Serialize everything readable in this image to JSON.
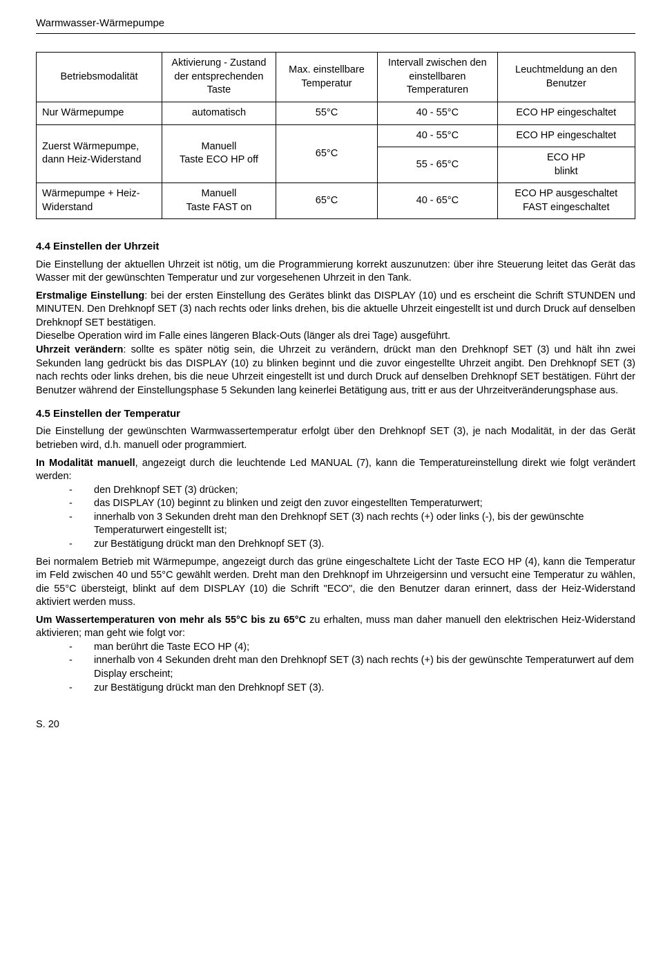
{
  "header": "Warmwasser-Wärmepumpe",
  "table": {
    "columns": [
      "Betriebsmodalität",
      "Aktivierung - Zustand der entsprechenden Taste",
      "Max. einstellbare Temperatur",
      "Intervall zwischen den einstellbaren Temperaturen",
      "Leuchtmeldung an den Benutzer"
    ],
    "r1": {
      "c1": "Nur Wärmepumpe",
      "c2": "automatisch",
      "c3": "55°C",
      "c4": "40 - 55°C",
      "c5": "ECO HP eingeschaltet"
    },
    "r2": {
      "c1": "Zuerst Wärmepumpe, dann Heiz-Widerstand",
      "c2": "Manuell\nTaste ECO HP off",
      "c3": "65°C",
      "c4a": "40 - 55°C",
      "c5a": "ECO HP eingeschaltet",
      "c4b": "55 - 65°C",
      "c5b": "ECO HP\nblinkt"
    },
    "r3": {
      "c1": "Wärmepumpe + Heiz-Widerstand",
      "c2": "Manuell\nTaste FAST on",
      "c3": "65°C",
      "c4": "40 - 65°C",
      "c5": "ECO HP ausgeschaltet\nFAST eingeschaltet"
    }
  },
  "sec44": {
    "title": "4.4 Einstellen der Uhrzeit",
    "p1": "Die Einstellung der aktuellen Uhrzeit ist nötig, um die Programmierung korrekt auszunutzen: über ihre Steuerung leitet das Gerät das Wasser mit der gewünschten Temperatur und zur vorgesehenen Uhrzeit in den Tank.",
    "p2a": "Erstmalige Einstellung",
    "p2b": ": bei der ersten Einstellung des Gerätes blinkt das DISPLAY (10) und es erscheint die Schrift STUNDEN und MINUTEN. Den Drehknopf SET (3) nach rechts oder links drehen, bis die aktuelle Uhrzeit eingestellt ist und durch Druck auf denselben Drehknopf SET bestätigen.",
    "p3": "Dieselbe Operation wird im Falle eines längeren Black-Outs (länger als drei Tage) ausgeführt.",
    "p4a": "Uhrzeit verändern",
    "p4b": ": sollte es später nötig sein, die Uhrzeit zu verändern, drückt man den Drehknopf SET (3) und hält ihn zwei Sekunden lang gedrückt bis das DISPLAY (10) zu blinken beginnt und die zuvor eingestellte Uhrzeit angibt. Den Drehknopf SET (3) nach rechts oder links drehen, bis die neue Uhrzeit eingestellt ist und durch Druck auf denselben Drehknopf SET bestätigen. Führt der Benutzer während der Einstellungsphase 5 Sekunden lang keinerlei Betätigung aus, tritt er aus der Uhrzeitveränderungsphase aus."
  },
  "sec45": {
    "title": "4.5 Einstellen der Temperatur",
    "p1": "Die Einstellung der gewünschten Warmwassertemperatur erfolgt über den Drehknopf SET (3), je nach Modalität, in der das Gerät betrieben wird, d.h. manuell oder programmiert.",
    "p2a": "In Modalität manuell",
    "p2b": ", angezeigt durch die leuchtende Led MANUAL (7), kann die Temperatureinstellung direkt wie folgt verändert werden:",
    "list1": [
      "den Drehknopf SET (3) drücken;",
      "das DISPLAY (10) beginnt zu blinken und zeigt den zuvor eingestellten Temperaturwert;",
      "innerhalb von 3 Sekunden dreht man den Drehknopf SET (3) nach rechts  (+) oder links (-), bis der gewünschte Temperaturwert eingestellt ist;",
      "zur Bestätigung drückt man den Drehknopf SET (3)."
    ],
    "p3": "Bei normalem Betrieb mit Wärmepumpe, angezeigt durch das grüne eingeschaltete Licht der Taste ECO HP (4), kann die Temperatur im Feld zwischen 40 und 55°C gewählt werden. Dreht man den Drehknopf im Uhrzeigersinn und versucht eine Temperatur zu wählen, die 55°C übersteigt, blinkt auf dem DISPLAY (10) die Schrift \"ECO\", die den Benutzer daran erinnert, dass der Heiz-Widerstand aktiviert werden muss.",
    "p4a": "Um Wassertemperaturen von mehr als 55°C bis zu 65°C",
    "p4b": " zu erhalten, muss man daher manuell den elektrischen Heiz-Widerstand aktivieren; man geht wie folgt vor:",
    "list2": [
      "man berührt die Taste ECO HP (4);",
      "innerhalb von 4 Sekunden dreht man den Drehknopf SET (3) nach rechts  (+) bis der gewünschte Temperaturwert auf dem Display erscheint;",
      "zur Bestätigung drückt man den Drehknopf SET (3)."
    ]
  },
  "footer": "S. 20"
}
